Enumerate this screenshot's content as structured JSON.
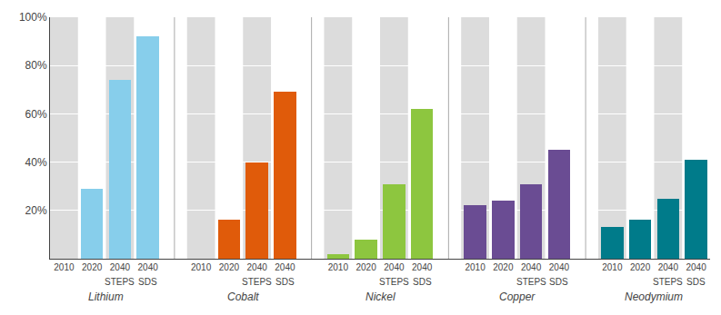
{
  "chart_data": {
    "type": "bar",
    "categories": [
      "2010",
      "2020",
      "2040",
      "2040"
    ],
    "annotations": [
      null,
      null,
      "STEPS",
      "SDS"
    ],
    "series": [
      {
        "name": "Lithium",
        "color": "#87CEEB",
        "values": [
          0,
          29,
          74,
          92
        ]
      },
      {
        "name": "Cobalt",
        "color": "#E05B0A",
        "values": [
          0,
          16,
          40,
          69
        ]
      },
      {
        "name": "Nickel",
        "color": "#8DC63F",
        "values": [
          2,
          8,
          31,
          62
        ]
      },
      {
        "name": "Copper",
        "color": "#6A4C93",
        "values": [
          22,
          24,
          31,
          45
        ]
      },
      {
        "name": "Neodymium",
        "color": "#007B8A",
        "values": [
          13,
          16,
          25,
          41
        ]
      }
    ],
    "ylim": [
      0,
      100
    ],
    "yticks": [
      {
        "value": 20,
        "label": "20%"
      },
      {
        "value": 40,
        "label": "40%"
      },
      {
        "value": 60,
        "label": "60%"
      },
      {
        "value": 80,
        "label": "80%"
      },
      {
        "value": 100,
        "label": "100%"
      }
    ],
    "grid": true
  }
}
